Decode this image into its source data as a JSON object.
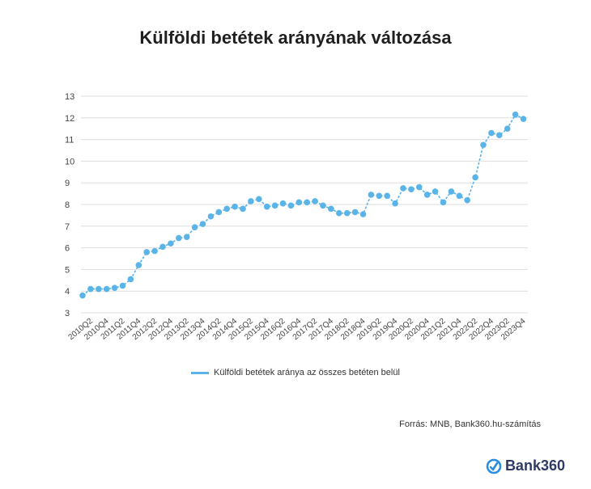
{
  "chart_data": {
    "type": "line",
    "title": "Külföldi betétek arányának változása",
    "xlabel": "",
    "ylabel": "",
    "ylim": [
      3,
      13
    ],
    "yticks": [
      3,
      4,
      5,
      6,
      7,
      8,
      9,
      10,
      11,
      12,
      13
    ],
    "grid": true,
    "legend_position": "bottom",
    "x": [
      "2010Q1",
      "2010Q2",
      "2010Q3",
      "2010Q4",
      "2011Q1",
      "2011Q2",
      "2011Q3",
      "2011Q4",
      "2012Q1",
      "2012Q2",
      "2012Q3",
      "2012Q4",
      "2013Q1",
      "2013Q2",
      "2013Q3",
      "2013Q4",
      "2014Q1",
      "2014Q2",
      "2014Q3",
      "2014Q4",
      "2015Q1",
      "2015Q2",
      "2015Q3",
      "2015Q4",
      "2016Q1",
      "2016Q2",
      "2016Q3",
      "2016Q4",
      "2017Q1",
      "2017Q2",
      "2017Q3",
      "2017Q4",
      "2018Q1",
      "2018Q2",
      "2018Q3",
      "2018Q4",
      "2019Q1",
      "2019Q2",
      "2019Q3",
      "2019Q4",
      "2020Q1",
      "2020Q2",
      "2020Q3",
      "2020Q4",
      "2021Q1",
      "2021Q2",
      "2021Q3",
      "2021Q4",
      "2022Q1",
      "2022Q2",
      "2022Q3",
      "2022Q4",
      "2023Q1",
      "2023Q2",
      "2023Q3",
      "2023Q4"
    ],
    "xtick_labels": [
      "2010Q2",
      "2010Q4",
      "2011Q2",
      "2011Q4",
      "2012Q2",
      "2012Q4",
      "2013Q2",
      "2013Q4",
      "2014Q2",
      "2014Q4",
      "2015Q2",
      "2015Q4",
      "2016Q2",
      "2016Q4",
      "2017Q2",
      "2017Q4",
      "2018Q2",
      "2018Q4",
      "2019Q2",
      "2019Q4",
      "2020Q2",
      "2020Q4",
      "2021Q2",
      "2021Q4",
      "2022Q2",
      "2022Q4",
      "2023Q2",
      "2023Q4"
    ],
    "series": [
      {
        "name": "Külföldi betétek aránya az összes betéten belül",
        "color": "#5bb4e8",
        "values": [
          3.8,
          4.1,
          4.1,
          4.1,
          4.15,
          4.25,
          4.55,
          5.2,
          5.8,
          5.85,
          6.05,
          6.2,
          6.45,
          6.5,
          6.95,
          7.1,
          7.45,
          7.65,
          7.8,
          7.9,
          7.8,
          8.15,
          8.25,
          7.9,
          7.95,
          8.05,
          7.95,
          8.1,
          8.1,
          8.15,
          7.95,
          7.8,
          7.6,
          7.6,
          7.65,
          7.55,
          8.45,
          8.4,
          8.4,
          8.05,
          8.75,
          8.7,
          8.8,
          8.45,
          8.6,
          8.1,
          8.6,
          8.4,
          8.2,
          9.25,
          10.75,
          11.3,
          11.2,
          11.5,
          12.15,
          11.95
        ]
      }
    ]
  },
  "source": "Forrás: MNB, Bank360.hu-számítás",
  "brand": {
    "name": "Bank360",
    "icon": "bank360-logo-icon",
    "color": "#2f3a66",
    "accent": "#2a8de0"
  }
}
